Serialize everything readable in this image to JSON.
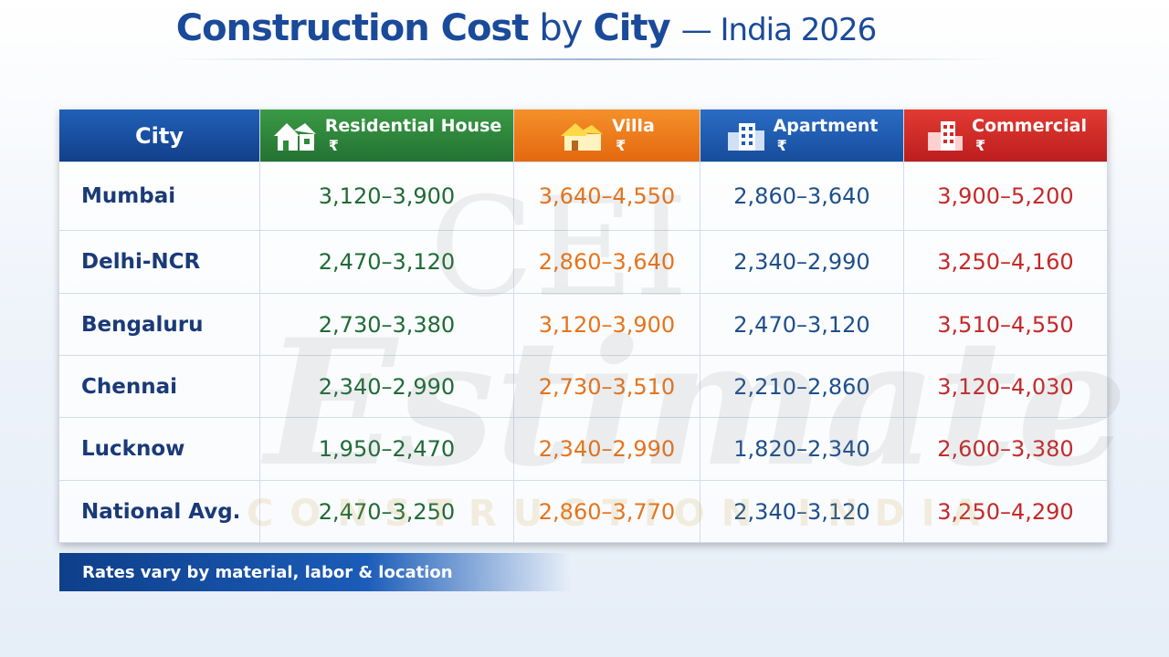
{
  "header": {
    "title": [
      "Construction Cost",
      "by",
      "City",
      "— India 2026"
    ]
  },
  "watermark": {
    "logo": "CEI",
    "word": "Estimate",
    "tagline": "CONSTRUCTION INDIA"
  },
  "table": {
    "columns": [
      {
        "label": "City"
      },
      {
        "label": "Residential House",
        "symbol": "₹"
      },
      {
        "label": "Villa",
        "symbol": "₹"
      },
      {
        "label": "Apartment",
        "symbol": "₹"
      },
      {
        "label": "Commercial",
        "symbol": "₹"
      }
    ],
    "rows": [
      {
        "city": "Mumbai",
        "values": [
          "3,120–3,900",
          "3,640–4,550",
          "2,860–3,640",
          "3,900–5,200"
        ]
      },
      {
        "city": "Delhi-NCR",
        "values": [
          "2,470–3,120",
          "2,860–3,640",
          "2,340–2,990",
          "3,250–4,160"
        ]
      },
      {
        "city": "Bengaluru",
        "values": [
          "2,730–3,380",
          "3,120–3,900",
          "2,470–3,120",
          "3,510–4,550"
        ]
      },
      {
        "city": "Chennai",
        "values": [
          "2,340–2,990",
          "2,730–3,510",
          "2,210–2,860",
          "3,120–4,030"
        ]
      },
      {
        "city": "Lucknow",
        "values": [
          "1,950–2,470",
          "2,340–2,990",
          "1,820–2,340",
          "2,600–3,380"
        ]
      },
      {
        "city": "National Avg.",
        "values": [
          "2,470–3,250",
          "2,860–3,770",
          "2,340–3,120",
          "3,250–4,290"
        ]
      }
    ]
  },
  "footer": {
    "note": "Rates vary by material, labor & location"
  }
}
